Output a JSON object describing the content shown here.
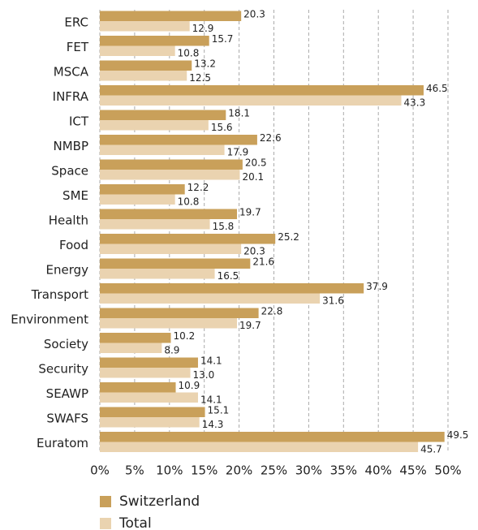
{
  "chart_data": {
    "type": "hbar",
    "categories": [
      "ERC",
      "FET",
      "MSCA",
      "INFRA",
      "ICT",
      "NMBP",
      "Space",
      "SME",
      "Health",
      "Food",
      "Energy",
      "Transport",
      "Environment",
      "Society",
      "Security",
      "SEAWP",
      "SWAFS",
      "Euratom"
    ],
    "series": [
      {
        "name": "Switzerland",
        "color": "#c9a05a",
        "values": [
          20.3,
          15.7,
          13.2,
          46.5,
          18.1,
          22.6,
          20.5,
          12.2,
          19.7,
          25.2,
          21.6,
          37.9,
          22.8,
          10.2,
          14.1,
          10.9,
          15.1,
          49.5
        ]
      },
      {
        "name": "Total",
        "color": "#ead3b0",
        "values": [
          12.9,
          10.8,
          12.5,
          43.3,
          15.6,
          17.9,
          20.1,
          10.8,
          15.8,
          20.3,
          16.5,
          31.6,
          19.7,
          8.9,
          13.0,
          14.1,
          14.3,
          45.7
        ],
        "value_labels": [
          "12.9",
          "10.8",
          "12.5",
          "43.3",
          "15.6",
          "17.9",
          "20.1",
          "10.8",
          "15.8",
          "20.3",
          "16.5",
          "31.6",
          "19.7",
          "8.9",
          "13.0",
          "14.1",
          "14.3",
          "45.7"
        ]
      }
    ],
    "xlim": [
      0,
      50
    ],
    "xticks": [
      {
        "value": 0,
        "label": "0%"
      },
      {
        "value": 5,
        "label": "5%"
      },
      {
        "value": 10,
        "label": "10%"
      },
      {
        "value": 15,
        "label": "15%"
      },
      {
        "value": 20,
        "label": "20%"
      },
      {
        "value": 25,
        "label": "25%"
      },
      {
        "value": 30,
        "label": "30%"
      },
      {
        "value": 35,
        "label": "35%"
      },
      {
        "value": 40,
        "label": "40%"
      },
      {
        "value": 45,
        "label": "45%"
      },
      {
        "value": 50,
        "label": "50%"
      }
    ],
    "grid": true,
    "legend": "bottom"
  }
}
